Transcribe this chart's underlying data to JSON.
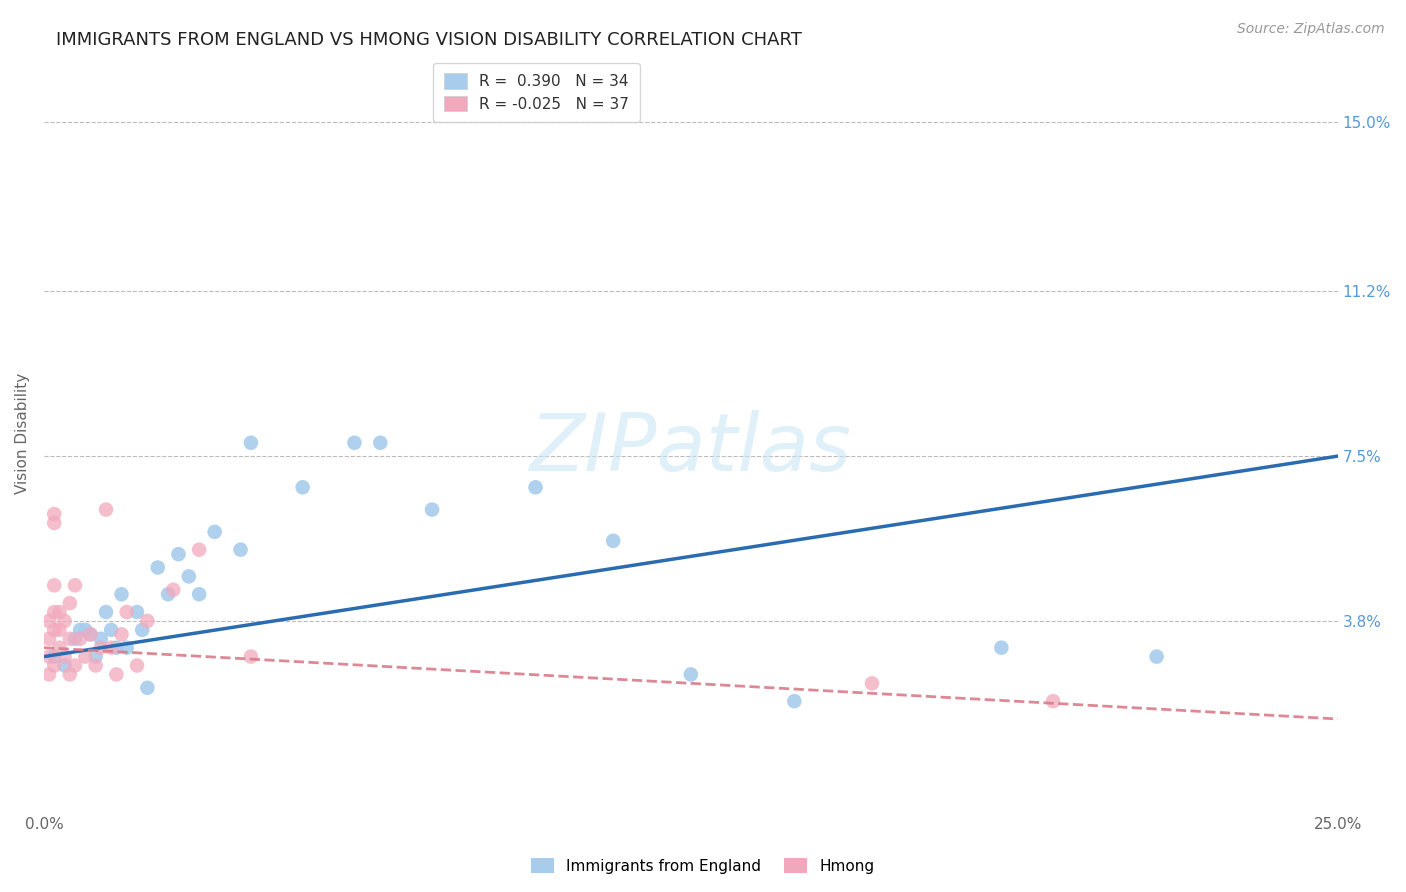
{
  "title": "IMMIGRANTS FROM ENGLAND VS HMONG VISION DISABILITY CORRELATION CHART",
  "source": "Source: ZipAtlas.com",
  "ylabel": "Vision Disability",
  "xlim": [
    0.0,
    0.25
  ],
  "ylim": [
    -0.005,
    0.165
  ],
  "yticks_right": [
    0.038,
    0.075,
    0.112,
    0.15
  ],
  "ytick_labels_right": [
    "3.8%",
    "7.5%",
    "11.2%",
    "15.0%"
  ],
  "R_england": 0.39,
  "N_england": 34,
  "R_hmong": -0.025,
  "N_hmong": 37,
  "color_england": "#A8CCEC",
  "color_hmong": "#F2A8BC",
  "line_color_england": "#2B6CB0",
  "line_color_hmong": "#D97B8A",
  "background_color": "#FFFFFF",
  "watermark_text": "ZIPatlas",
  "england_line_x": [
    0.0,
    0.25
  ],
  "england_line_y": [
    0.03,
    0.075
  ],
  "hmong_line_x": [
    0.0,
    0.25
  ],
  "hmong_line_y": [
    0.032,
    0.016
  ],
  "england_x": [
    0.002,
    0.004,
    0.006,
    0.007,
    0.008,
    0.009,
    0.01,
    0.011,
    0.012,
    0.013,
    0.014,
    0.015,
    0.016,
    0.018,
    0.019,
    0.02,
    0.022,
    0.024,
    0.026,
    0.028,
    0.03,
    0.033,
    0.038,
    0.04,
    0.05,
    0.06,
    0.065,
    0.075,
    0.095,
    0.11,
    0.125,
    0.145,
    0.185,
    0.215
  ],
  "england_y": [
    0.03,
    0.028,
    0.034,
    0.036,
    0.036,
    0.035,
    0.03,
    0.034,
    0.04,
    0.036,
    0.032,
    0.044,
    0.032,
    0.04,
    0.036,
    0.023,
    0.05,
    0.044,
    0.053,
    0.048,
    0.044,
    0.058,
    0.054,
    0.078,
    0.068,
    0.078,
    0.078,
    0.063,
    0.068,
    0.056,
    0.026,
    0.02,
    0.032,
    0.03
  ],
  "hmong_x": [
    0.001,
    0.001,
    0.001,
    0.001,
    0.002,
    0.002,
    0.002,
    0.002,
    0.003,
    0.003,
    0.003,
    0.004,
    0.004,
    0.005,
    0.005,
    0.005,
    0.006,
    0.006,
    0.007,
    0.008,
    0.009,
    0.01,
    0.011,
    0.012,
    0.013,
    0.014,
    0.015,
    0.016,
    0.018,
    0.02,
    0.025,
    0.03,
    0.04,
    0.16,
    0.195,
    0.002,
    0.002
  ],
  "hmong_y": [
    0.034,
    0.038,
    0.03,
    0.026,
    0.04,
    0.036,
    0.028,
    0.046,
    0.032,
    0.036,
    0.04,
    0.03,
    0.038,
    0.034,
    0.042,
    0.026,
    0.028,
    0.046,
    0.034,
    0.03,
    0.035,
    0.028,
    0.032,
    0.063,
    0.032,
    0.026,
    0.035,
    0.04,
    0.028,
    0.038,
    0.045,
    0.054,
    0.03,
    0.024,
    0.02,
    0.062,
    0.06
  ]
}
